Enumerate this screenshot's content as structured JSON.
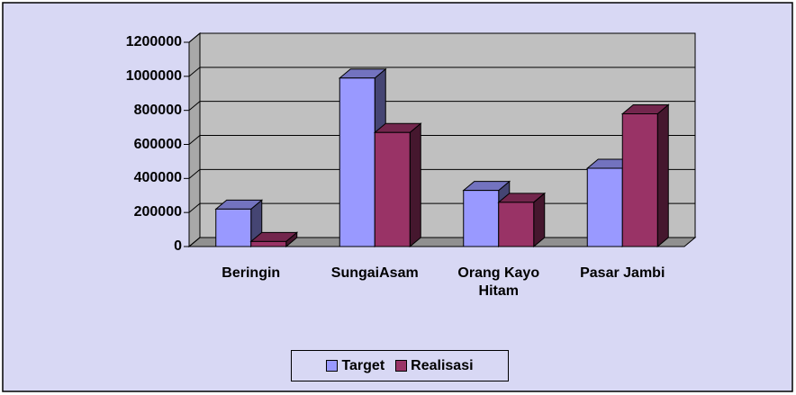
{
  "chart_data": {
    "type": "bar",
    "categories": [
      "Beringin",
      "SungaiAsam",
      "Orang Kayo Hitam",
      "Pasar Jambi"
    ],
    "series": [
      {
        "name": "Target",
        "color": "#9999ff",
        "values": [
          220000,
          990000,
          330000,
          460000
        ]
      },
      {
        "name": "Realisasi",
        "color": "#993366",
        "values": [
          30000,
          670000,
          260000,
          780000
        ]
      }
    ],
    "ylim": [
      0,
      1200000
    ],
    "yticks": [
      0,
      200000,
      400000,
      600000,
      800000,
      1000000,
      1200000
    ],
    "grid": true,
    "legend": "bottom"
  }
}
